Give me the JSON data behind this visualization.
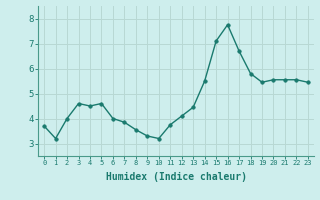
{
  "x": [
    0,
    1,
    2,
    3,
    4,
    5,
    6,
    7,
    8,
    9,
    10,
    11,
    12,
    13,
    14,
    15,
    16,
    17,
    18,
    19,
    20,
    21,
    22,
    23
  ],
  "y": [
    3.7,
    3.2,
    4.0,
    4.6,
    4.5,
    4.6,
    4.0,
    3.85,
    3.55,
    3.3,
    3.2,
    3.75,
    4.1,
    4.45,
    5.5,
    7.1,
    7.75,
    6.7,
    5.8,
    5.45,
    5.55,
    5.55,
    5.55,
    5.45
  ],
  "line_color": "#1a7a6e",
  "marker": "o",
  "markersize": 2.5,
  "linewidth": 1.0,
  "xlabel": "Humidex (Indice chaleur)",
  "xlabel_fontsize": 7,
  "bg_color": "#ceeeed",
  "grid_color": "#b8d8d4",
  "tick_color": "#1a7a6e",
  "ylim": [
    2.5,
    8.5
  ],
  "yticks": [
    3,
    4,
    5,
    6,
    7,
    8
  ],
  "xticks": [
    0,
    1,
    2,
    3,
    4,
    5,
    6,
    7,
    8,
    9,
    10,
    11,
    12,
    13,
    14,
    15,
    16,
    17,
    18,
    19,
    20,
    21,
    22,
    23
  ]
}
